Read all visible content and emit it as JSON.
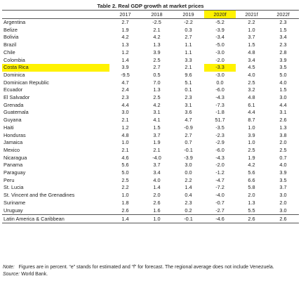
{
  "title": "Table 2. Real GDP growth at market prices",
  "columns": [
    "",
    "2017",
    "2018",
    "2019",
    "2020f",
    "2021f",
    "2022f"
  ],
  "highlight_color": "#fff200",
  "highlight_column_index": 4,
  "highlight_row": "Costa Rica",
  "rows": [
    [
      "Argentina",
      "2.7",
      "-2.5",
      "-2.2",
      "-5.2",
      "2.2",
      "2.3"
    ],
    [
      "Belize",
      "1.9",
      "2.1",
      "0.3",
      "-3.9",
      "1.0",
      "1.5"
    ],
    [
      "Bolivia",
      "4.2",
      "4.2",
      "2.7",
      "-3.4",
      "3.7",
      "3.4"
    ],
    [
      "Brazil",
      "1.3",
      "1.3",
      "1.1",
      "-5.0",
      "1.5",
      "2.3"
    ],
    [
      "Chile",
      "1.2",
      "3.9",
      "1.1",
      "-3.0",
      "4.8",
      "2.8"
    ],
    [
      "Colombia",
      "1.4",
      "2.5",
      "3.3",
      "-2.0",
      "3.4",
      "3.9"
    ],
    [
      "Costa Rica",
      "3.9",
      "2.7",
      "2.1",
      "-3.3",
      "4.5",
      "3.5"
    ],
    [
      "Dominica",
      "-9.5",
      "0.5",
      "9.6",
      "-3.0",
      "4.0",
      "5.0"
    ],
    [
      "Dominican Republic",
      "4.7",
      "7.0",
      "5.1",
      "0.0",
      "2.5",
      "4.0"
    ],
    [
      "Ecuador",
      "2.4",
      "1.3",
      "0.1",
      "-6.0",
      "3.2",
      "1.5"
    ],
    [
      "El Salvador",
      "2.3",
      "2.5",
      "2.3",
      "-4.3",
      "4.8",
      "3.0"
    ],
    [
      "Grenada",
      "4.4",
      "4.2",
      "3.1",
      "-7.3",
      "6.1",
      "4.4"
    ],
    [
      "Guatemala",
      "3.0",
      "3.1",
      "3.6",
      "-1.8",
      "4.4",
      "3.1"
    ],
    [
      "Guyana",
      "2.1",
      "4.1",
      "4.7",
      "51.7",
      "8.7",
      "2.6"
    ],
    [
      "Haiti",
      "1.2",
      "1.5",
      "-0.9",
      "-3.5",
      "1.0",
      "1.3"
    ],
    [
      "Honduras",
      "4.8",
      "3.7",
      "2.7",
      "-2.3",
      "3.9",
      "3.8"
    ],
    [
      "Jamaica",
      "1.0",
      "1.9",
      "0.7",
      "-2.9",
      "1.0",
      "2.0"
    ],
    [
      "Mexico",
      "2.1",
      "2.1",
      "-0.1",
      "-6.0",
      "2.5",
      "2.5"
    ],
    [
      "Nicaragua",
      "4.6",
      "-4.0",
      "-3.9",
      "-4.3",
      "1.9",
      "0.7"
    ],
    [
      "Panama",
      "5.6",
      "3.7",
      "3.0",
      "-2.0",
      "4.2",
      "4.0"
    ],
    [
      "Paraguay",
      "5.0",
      "3.4",
      "0.0",
      "-1.2",
      "5.6",
      "3.9"
    ],
    [
      "Peru",
      "2.5",
      "4.0",
      "2.2",
      "-4.7",
      "6.6",
      "3.5"
    ],
    [
      "St. Lucia",
      "2.2",
      "1.4",
      "1.4",
      "-7.2",
      "5.8",
      "3.7"
    ],
    [
      "St. Vincent and the Grenadines",
      "1.0",
      "2.0",
      "0.4",
      "-4.0",
      "2.0",
      "3.0"
    ],
    [
      "Suriname",
      "1.8",
      "2.6",
      "2.3",
      "-0.7",
      "1.3",
      "2.0"
    ],
    [
      "Uruguay",
      "2.6",
      "1.6",
      "0.2",
      "-2.7",
      "5.5",
      "3.0"
    ]
  ],
  "average_row": [
    "Latin America & Caribbean",
    "1.4",
    "1.0",
    "-0.1",
    "-4.6",
    "2.6",
    "2.6"
  ],
  "note_label": "Note:",
  "note_text": "Figures are in percent. “e” stands for estimated and “f” for forecast. The regional average does not include Venezuela.",
  "source_label": "Source:",
  "source_text": "World Bank."
}
